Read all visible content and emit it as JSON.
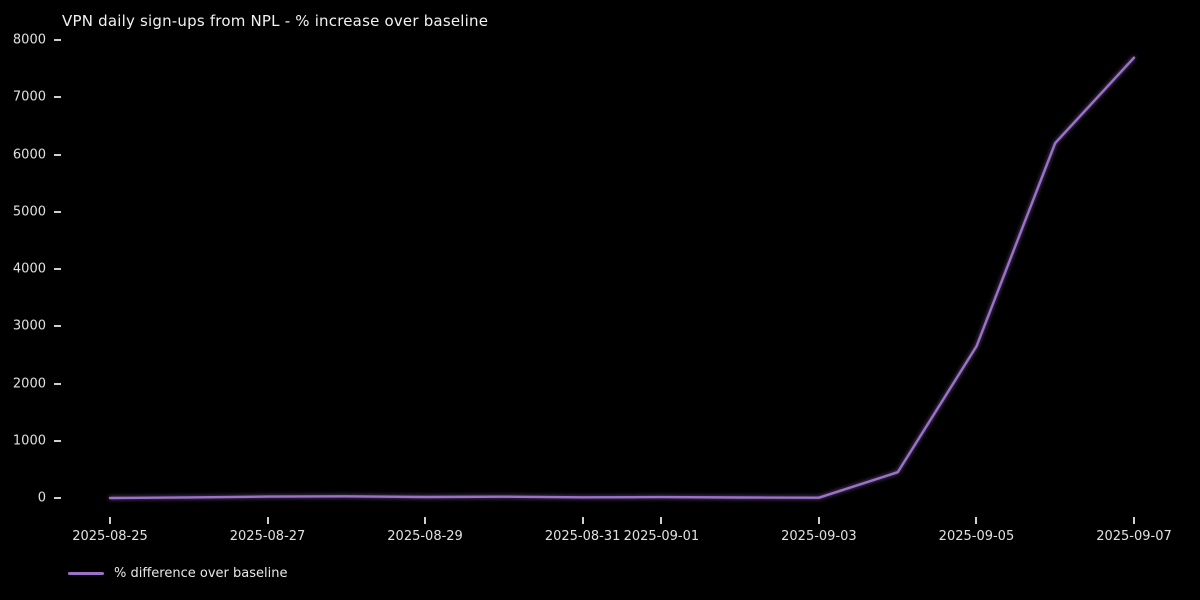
{
  "title": "VPN daily sign-ups from NPL - % increase over baseline",
  "colors": {
    "background": "#000000",
    "line": "#9b72c8",
    "tick_text": "#e0e0e0",
    "title_text": "#f2f2f2"
  },
  "legend": {
    "label": "% difference over baseline"
  },
  "chart_data": {
    "type": "line",
    "title": "VPN daily sign-ups from NPL - % increase over baseline",
    "xlabel": "",
    "ylabel": "",
    "x": [
      "2025-08-25",
      "2025-08-26",
      "2025-08-27",
      "2025-08-28",
      "2025-08-29",
      "2025-08-30",
      "2025-08-31",
      "2025-09-01",
      "2025-09-02",
      "2025-09-03",
      "2025-09-04",
      "2025-09-05",
      "2025-09-06",
      "2025-09-07"
    ],
    "series": [
      {
        "name": "% difference over baseline",
        "values": [
          0,
          10,
          25,
          30,
          18,
          22,
          12,
          15,
          8,
          5,
          450,
          2650,
          6200,
          7690
        ]
      }
    ],
    "ylim": [
      0,
      8000
    ],
    "yticks": [
      0,
      1000,
      2000,
      3000,
      4000,
      5000,
      6000,
      7000,
      8000
    ],
    "xtick_labels": [
      "2025-08-25",
      "2025-08-27",
      "2025-08-29",
      "2025-08-31",
      "2025-09-01",
      "2025-09-03",
      "2025-09-05",
      "2025-09-07"
    ],
    "grid": false,
    "legend_position": "bottom-left"
  }
}
